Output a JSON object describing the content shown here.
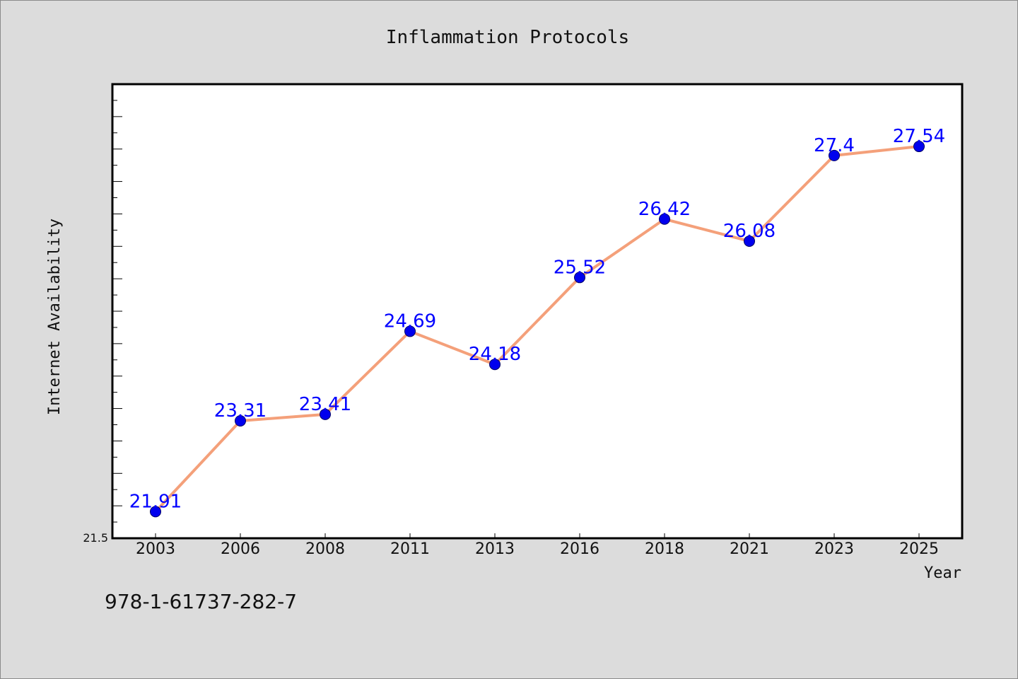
{
  "chart_data": {
    "type": "line",
    "title": "Inflammation Protocols",
    "xlabel": "Year",
    "ylabel": "Internet Availability",
    "categories": [
      "2003",
      "2006",
      "2008",
      "2011",
      "2013",
      "2016",
      "2018",
      "2021",
      "2023",
      "2025"
    ],
    "values": [
      21.91,
      23.31,
      23.41,
      24.69,
      24.18,
      25.52,
      26.42,
      26.08,
      27.4,
      27.54
    ],
    "data_labels": [
      "21.91",
      "23.31",
      "23.41",
      "24.69",
      "24.18",
      "25.52",
      "26.42",
      "26.08",
      "27.4",
      "27.54"
    ],
    "ylim": [
      21.5,
      28.5
    ],
    "y_tick_labels": [
      "21.5"
    ],
    "grid": false,
    "line_color": "#f4a07a",
    "marker_color": "#0000ee",
    "label_color": "#0000ff"
  },
  "footer": {
    "isbn": "978-1-61737-282-7"
  }
}
